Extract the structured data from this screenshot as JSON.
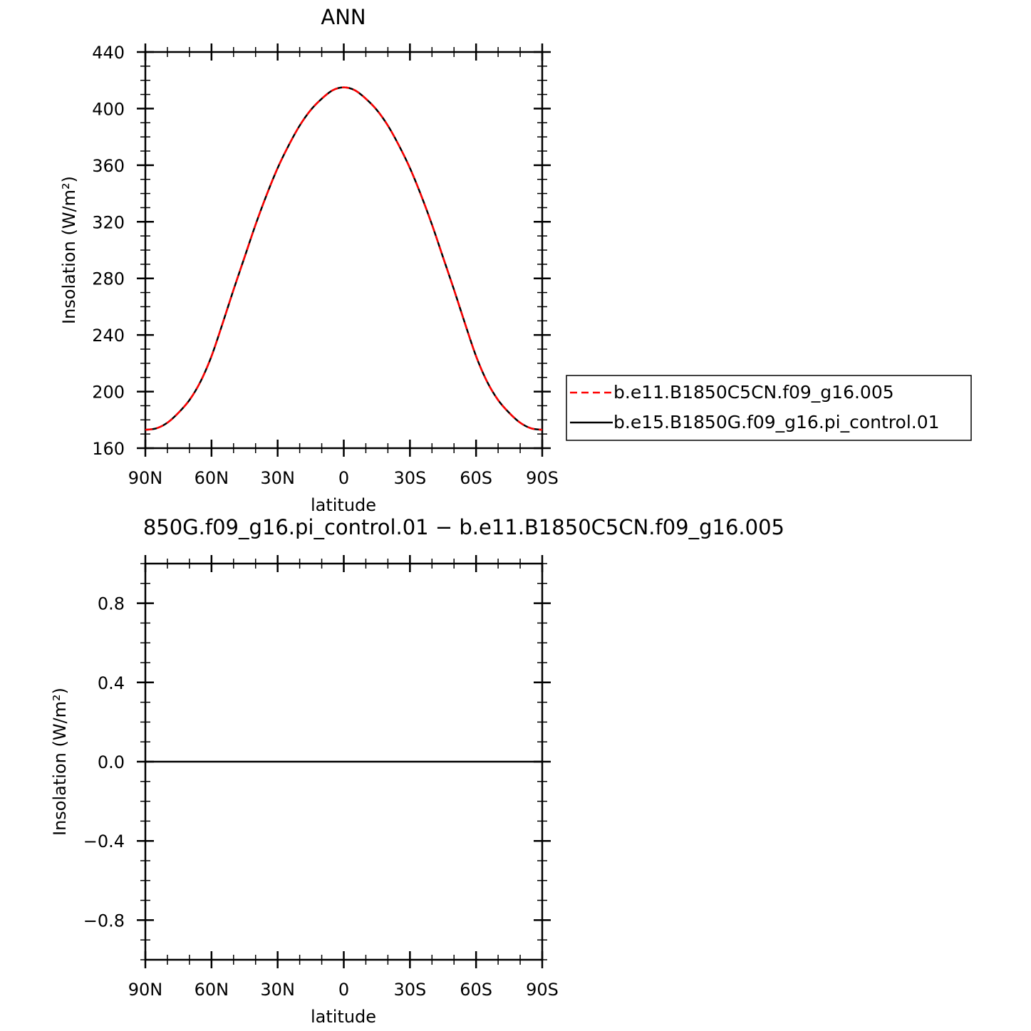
{
  "chart_data": [
    {
      "type": "line",
      "title": "ANN",
      "xlabel": "latitude",
      "ylabel": "Insolation (W/m²)",
      "xticks": [
        "90N",
        "60N",
        "30N",
        "0",
        "30S",
        "60S",
        "90S"
      ],
      "yticks": [
        "160",
        "200",
        "240",
        "280",
        "320",
        "360",
        "400",
        "440"
      ],
      "xlim": [
        90,
        -90
      ],
      "ylim": [
        160,
        440
      ],
      "legend_position": "right",
      "x": [
        90,
        85,
        80,
        75,
        70,
        65,
        60,
        55,
        50,
        45,
        40,
        35,
        30,
        25,
        20,
        15,
        10,
        5,
        0,
        -5,
        -10,
        -15,
        -20,
        -25,
        -30,
        -35,
        -40,
        -45,
        -50,
        -55,
        -60,
        -65,
        -70,
        -75,
        -80,
        -85,
        -90
      ],
      "series": [
        {
          "name": "b.e11.B1850C5CN.f09_g16.005",
          "color": "#ff0000",
          "dash": "dashed",
          "values": [
            173,
            174,
            178,
            185,
            194,
            207,
            225,
            248,
            272,
            295,
            318,
            339,
            358,
            374,
            388,
            399,
            407,
            413,
            415,
            413,
            407,
            399,
            388,
            374,
            358,
            339,
            318,
            295,
            272,
            248,
            225,
            207,
            194,
            185,
            178,
            174,
            173
          ]
        },
        {
          "name": "b.e15.B1850G.f09_g16.pi_control.01",
          "color": "#000000",
          "dash": "solid",
          "values": [
            173,
            174,
            178,
            185,
            194,
            207,
            225,
            248,
            272,
            295,
            318,
            339,
            358,
            374,
            388,
            399,
            407,
            413,
            415,
            413,
            407,
            399,
            388,
            374,
            358,
            339,
            318,
            295,
            272,
            248,
            225,
            207,
            194,
            185,
            178,
            174,
            173
          ]
        }
      ]
    },
    {
      "type": "line",
      "title": "850G.f09_g16.pi_control.01 − b.e11.B1850C5CN.f09_g16.005",
      "xlabel": "latitude",
      "ylabel": "Insolation (W/m²)",
      "xticks": [
        "90N",
        "60N",
        "30N",
        "0",
        "30S",
        "60S",
        "90S"
      ],
      "yticks": [
        "−0.8",
        "−0.4",
        "0.0",
        "0.4",
        "0.8"
      ],
      "xlim": [
        90,
        -90
      ],
      "ylim": [
        -1,
        1
      ],
      "x": [
        90,
        -90
      ],
      "series": [
        {
          "color": "#000000",
          "values": [
            0,
            0
          ]
        }
      ]
    }
  ]
}
